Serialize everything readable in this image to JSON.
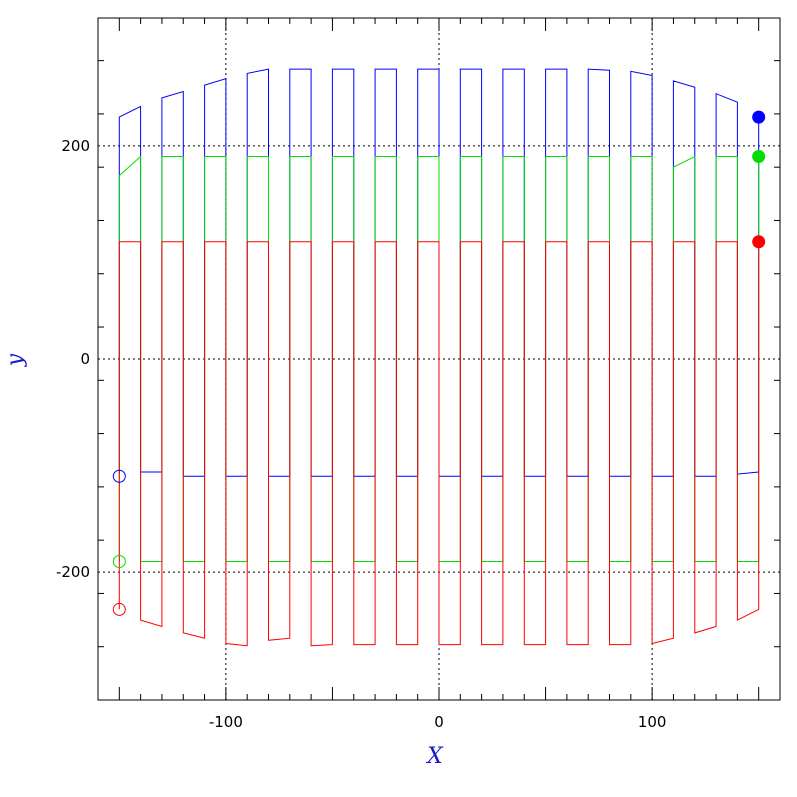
{
  "chart_data": {
    "type": "line",
    "xlabel": "X",
    "ylabel": "y",
    "xlim": [
      -160,
      160
    ],
    "ylim": [
      -320,
      320
    ],
    "x_ticks_labeled": [
      -100,
      0,
      100
    ],
    "y_ticks_labeled": [
      -200,
      0,
      200
    ],
    "x_minor_step": 10,
    "y_minor_step": 50,
    "gridlines": {
      "x": [
        -100,
        0,
        100
      ],
      "y": [
        -200,
        0,
        200
      ],
      "style": "dotted"
    },
    "grid": true,
    "label_color": "#1a1acc",
    "series": [
      {
        "color": "#0000ff",
        "top": [
          [
            -150,
            227
          ],
          [
            -140,
            237
          ],
          [
            -130,
            245
          ],
          [
            -120,
            251
          ],
          [
            -110,
            257
          ],
          [
            -100,
            263
          ],
          [
            -90,
            268
          ],
          [
            -80,
            272
          ],
          [
            -70,
            272
          ],
          [
            -60,
            272
          ],
          [
            -50,
            272
          ],
          [
            -40,
            272
          ],
          [
            -30,
            272
          ],
          [
            -20,
            272
          ],
          [
            -10,
            272
          ],
          [
            0,
            272
          ],
          [
            10,
            272
          ],
          [
            20,
            272
          ],
          [
            30,
            272
          ],
          [
            40,
            272
          ],
          [
            50,
            272
          ],
          [
            60,
            272
          ],
          [
            70,
            272
          ],
          [
            80,
            271
          ],
          [
            90,
            270
          ],
          [
            100,
            266
          ],
          [
            110,
            261
          ],
          [
            120,
            255
          ],
          [
            130,
            249
          ],
          [
            140,
            241
          ],
          [
            150,
            231
          ]
        ],
        "bottom": [
          [
            -150,
            -108
          ],
          [
            -140,
            -106
          ],
          [
            -130,
            -106
          ],
          [
            -120,
            -110
          ],
          [
            -110,
            -110
          ],
          [
            -100,
            -110
          ],
          [
            -90,
            -110
          ],
          [
            -80,
            -110
          ],
          [
            -70,
            -110
          ],
          [
            -60,
            -110
          ],
          [
            -50,
            -110
          ],
          [
            -40,
            -110
          ],
          [
            -30,
            -110
          ],
          [
            -20,
            -110
          ],
          [
            -10,
            -110
          ],
          [
            0,
            -110
          ],
          [
            10,
            -110
          ],
          [
            20,
            -110
          ],
          [
            30,
            -110
          ],
          [
            40,
            -110
          ],
          [
            50,
            -110
          ],
          [
            60,
            -110
          ],
          [
            70,
            -110
          ],
          [
            80,
            -110
          ],
          [
            90,
            -110
          ],
          [
            100,
            -110
          ],
          [
            110,
            -110
          ],
          [
            120,
            -110
          ],
          [
            130,
            -110
          ],
          [
            140,
            -108
          ],
          [
            150,
            -106
          ]
        ],
        "start_marker": [
          -150,
          -110
        ],
        "end_marker": [
          150,
          227
        ]
      },
      {
        "color": "#00dd00",
        "top": [
          [
            -150,
            172
          ],
          [
            -140,
            190
          ],
          [
            -130,
            190
          ],
          [
            -120,
            190
          ],
          [
            -110,
            190
          ],
          [
            -100,
            190
          ],
          [
            -90,
            190
          ],
          [
            -80,
            190
          ],
          [
            -70,
            190
          ],
          [
            -60,
            190
          ],
          [
            -50,
            190
          ],
          [
            -40,
            190
          ],
          [
            -30,
            190
          ],
          [
            -20,
            190
          ],
          [
            -10,
            190
          ],
          [
            0,
            190
          ],
          [
            10,
            190
          ],
          [
            20,
            190
          ],
          [
            30,
            190
          ],
          [
            40,
            190
          ],
          [
            50,
            190
          ],
          [
            60,
            190
          ],
          [
            70,
            190
          ],
          [
            80,
            190
          ],
          [
            90,
            190
          ],
          [
            100,
            190
          ],
          [
            110,
            180
          ],
          [
            120,
            190
          ],
          [
            130,
            190
          ],
          [
            140,
            190
          ],
          [
            150,
            190
          ]
        ],
        "bottom": [
          [
            -150,
            -190
          ],
          [
            -140,
            -190
          ],
          [
            -130,
            -190
          ],
          [
            -120,
            -190
          ],
          [
            -110,
            -190
          ],
          [
            -100,
            -190
          ],
          [
            -90,
            -190
          ],
          [
            -80,
            -190
          ],
          [
            -70,
            -190
          ],
          [
            -60,
            -190
          ],
          [
            -50,
            -190
          ],
          [
            -40,
            -190
          ],
          [
            -30,
            -190
          ],
          [
            -20,
            -190
          ],
          [
            -10,
            -190
          ],
          [
            0,
            -190
          ],
          [
            10,
            -190
          ],
          [
            20,
            -190
          ],
          [
            30,
            -190
          ],
          [
            40,
            -190
          ],
          [
            50,
            -190
          ],
          [
            60,
            -190
          ],
          [
            70,
            -190
          ],
          [
            80,
            -190
          ],
          [
            90,
            -190
          ],
          [
            100,
            -190
          ],
          [
            110,
            -190
          ],
          [
            120,
            -190
          ],
          [
            130,
            -190
          ],
          [
            140,
            -190
          ],
          [
            150,
            -190
          ]
        ],
        "start_marker": [
          -150,
          -190
        ],
        "end_marker": [
          150,
          190
        ]
      },
      {
        "color": "#ff0000",
        "top": [
          [
            -150,
            110
          ],
          [
            -140,
            110
          ],
          [
            -130,
            110
          ],
          [
            -120,
            110
          ],
          [
            -110,
            110
          ],
          [
            -100,
            110
          ],
          [
            -90,
            110
          ],
          [
            -80,
            110
          ],
          [
            -70,
            110
          ],
          [
            -60,
            110
          ],
          [
            -50,
            110
          ],
          [
            -40,
            110
          ],
          [
            -30,
            110
          ],
          [
            -20,
            110
          ],
          [
            -10,
            110
          ],
          [
            0,
            110
          ],
          [
            10,
            110
          ],
          [
            20,
            110
          ],
          [
            30,
            110
          ],
          [
            40,
            110
          ],
          [
            50,
            110
          ],
          [
            60,
            110
          ],
          [
            70,
            110
          ],
          [
            80,
            110
          ],
          [
            90,
            110
          ],
          [
            100,
            110
          ],
          [
            110,
            110
          ],
          [
            120,
            110
          ],
          [
            130,
            110
          ],
          [
            140,
            110
          ],
          [
            150,
            110
          ]
        ],
        "bottom": [
          [
            -150,
            -235
          ],
          [
            -140,
            -245
          ],
          [
            -130,
            -251
          ],
          [
            -120,
            -257
          ],
          [
            -110,
            -262
          ],
          [
            -100,
            -267
          ],
          [
            -90,
            -269
          ],
          [
            -80,
            -264
          ],
          [
            -70,
            -262
          ],
          [
            -60,
            -269
          ],
          [
            -50,
            -268
          ],
          [
            -40,
            -268
          ],
          [
            -30,
            -268
          ],
          [
            -20,
            -268
          ],
          [
            -10,
            -268
          ],
          [
            0,
            -268
          ],
          [
            10,
            -268
          ],
          [
            20,
            -268
          ],
          [
            30,
            -268
          ],
          [
            40,
            -268
          ],
          [
            50,
            -268
          ],
          [
            60,
            -268
          ],
          [
            70,
            -268
          ],
          [
            80,
            -268
          ],
          [
            90,
            -268
          ],
          [
            100,
            -267
          ],
          [
            110,
            -262
          ],
          [
            120,
            -257
          ],
          [
            130,
            -251
          ],
          [
            140,
            -245
          ],
          [
            150,
            -235
          ]
        ],
        "start_marker": [
          -150,
          -235
        ],
        "end_marker": [
          150,
          110
        ]
      }
    ]
  }
}
